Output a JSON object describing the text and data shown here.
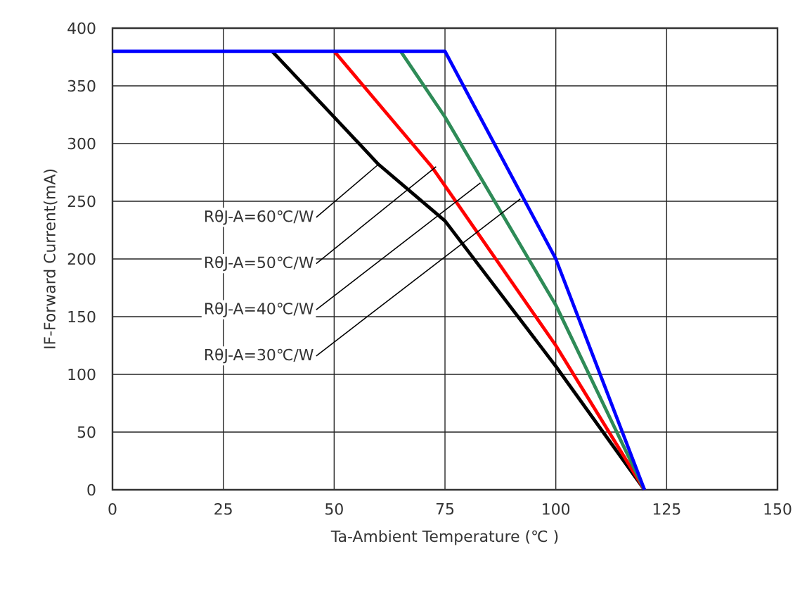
{
  "chart_data": {
    "type": "line",
    "xlabel": "Ta-Ambient Temperature (℃ )",
    "ylabel": "IF-Forward Current(mA)",
    "xlim": [
      0,
      150
    ],
    "xticks": [
      0,
      25,
      50,
      75,
      100,
      125,
      150
    ],
    "ylim": [
      0,
      400
    ],
    "yticks": [
      0,
      50,
      100,
      150,
      200,
      250,
      300,
      350,
      400
    ],
    "grid": true,
    "line_style": "solid",
    "series": [
      {
        "color": "#000000",
        "x": [
          36,
          50,
          60,
          75,
          100,
          120
        ],
        "values": [
          380,
          323,
          282,
          233,
          107,
          0
        ]
      },
      {
        "color": "#ff0000",
        "x": [
          50,
          72,
          100,
          120
        ],
        "values": [
          380,
          280,
          125,
          0
        ]
      },
      {
        "color": "#2e8b57",
        "x": [
          65,
          75,
          100,
          120
        ],
        "values": [
          380,
          323,
          160,
          0
        ]
      },
      {
        "color": "#0000ff",
        "x": [
          0,
          75,
          100,
          120
        ],
        "values": [
          380,
          380,
          200,
          0
        ]
      }
    ],
    "annotations": [
      {
        "text": "RθJ-A=60℃/W",
        "x": 60,
        "y": 282
      },
      {
        "text": "RθJ-A=50℃/W",
        "x": 73,
        "y": 280
      },
      {
        "text": "RθJ-A=40℃/W",
        "x": 83,
        "y": 266
      },
      {
        "text": "RθJ-A=30℃/W",
        "x": 92,
        "y": 252
      }
    ]
  }
}
